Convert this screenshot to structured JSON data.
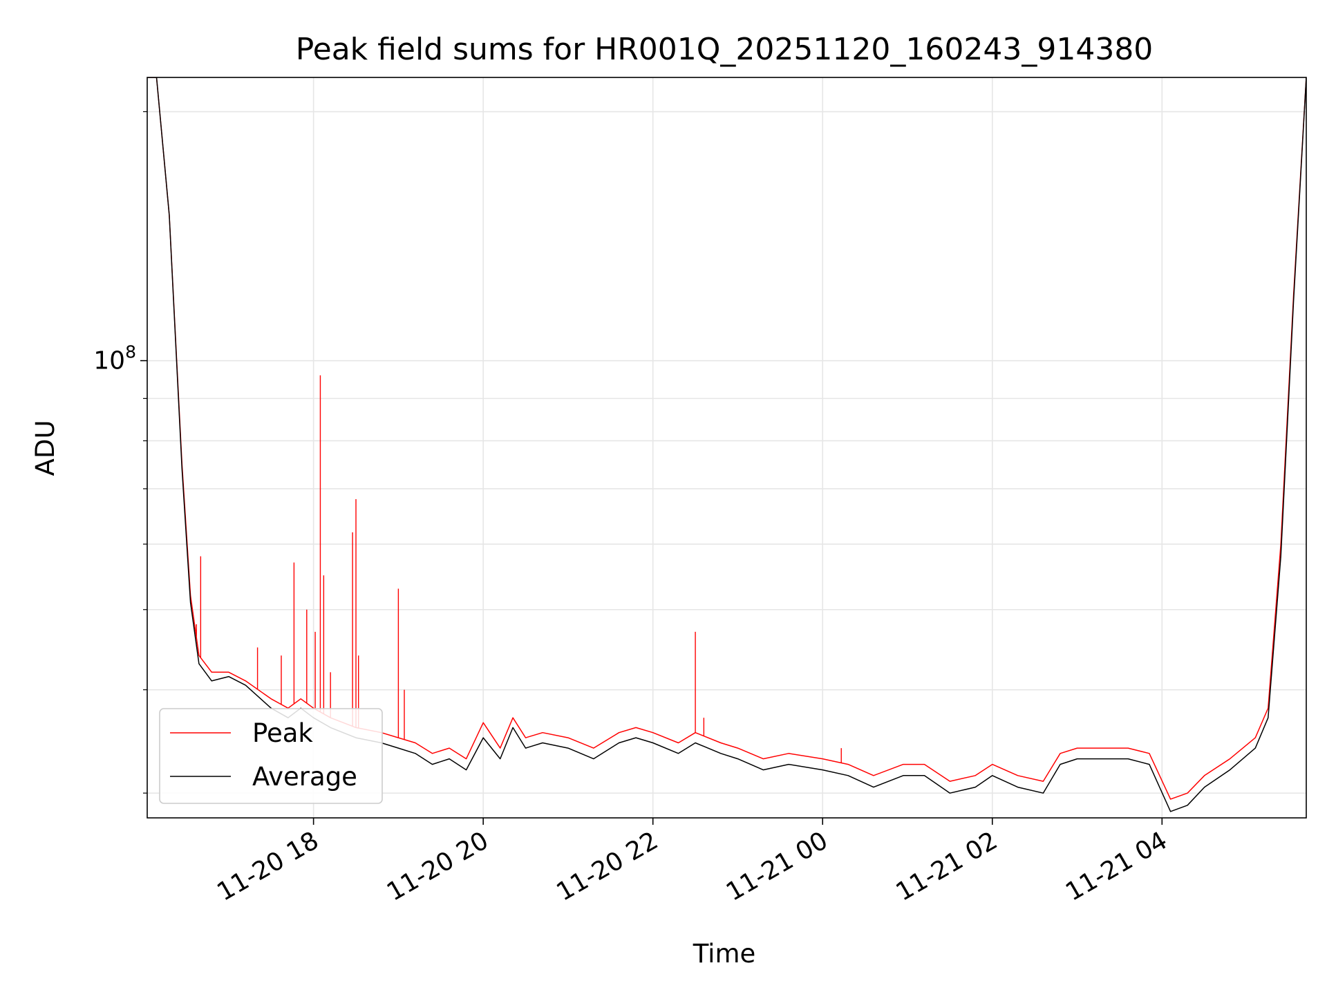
{
  "chart_data": {
    "type": "line",
    "title": "Peak field sums for HR001Q_20251120_160243_914380",
    "xlabel": "Time",
    "ylabel": "ADU",
    "yscale": "log",
    "grid": true,
    "legend_position": "lower-left",
    "x_unit": "hours since 11-20 16:00",
    "xlim": [
      0.04,
      13.7
    ],
    "ylim": [
      28000000,
      220000000
    ],
    "x_ticks": [
      {
        "value": 2,
        "label": "11-20 18"
      },
      {
        "value": 4,
        "label": "11-20 20"
      },
      {
        "value": 6,
        "label": "11-20 22"
      },
      {
        "value": 8,
        "label": "11-21 00"
      },
      {
        "value": 10,
        "label": "11-21 02"
      },
      {
        "value": 12,
        "label": "11-21 04"
      }
    ],
    "y_major_ticks": [
      {
        "value": 100000000,
        "base": "10",
        "exponent": "8"
      }
    ],
    "y_minor_ticks": [
      30000000,
      40000000,
      50000000,
      60000000,
      70000000,
      80000000,
      90000000,
      200000000
    ],
    "series": [
      {
        "name": "Peak",
        "color": "#ff0000",
        "x": [
          0.04,
          0.15,
          0.3,
          0.45,
          0.55,
          0.65,
          0.8,
          1.0,
          1.2,
          1.5,
          1.7,
          1.85,
          2.0,
          2.2,
          2.5,
          2.8,
          3.0,
          3.2,
          3.4,
          3.6,
          3.8,
          4.0,
          4.2,
          4.35,
          4.5,
          4.7,
          5.0,
          5.3,
          5.6,
          5.8,
          6.0,
          6.3,
          6.5,
          6.8,
          7.0,
          7.3,
          7.6,
          8.0,
          8.3,
          8.6,
          8.95,
          9.2,
          9.5,
          9.8,
          10.0,
          10.3,
          10.6,
          10.8,
          11.0,
          11.3,
          11.6,
          11.85,
          12.1,
          12.3,
          12.5,
          12.8,
          13.1,
          13.25,
          13.4,
          13.55,
          13.7
        ],
        "values": [
          220000000,
          220000000,
          150000000,
          75000000,
          52000000,
          44000000,
          42000000,
          42000000,
          41000000,
          39000000,
          38000000,
          39000000,
          38000000,
          37000000,
          36000000,
          35500000,
          35000000,
          34500000,
          33500000,
          34000000,
          33000000,
          36500000,
          34000000,
          37000000,
          35000000,
          35500000,
          35000000,
          34000000,
          35500000,
          36000000,
          35500000,
          34500000,
          35500000,
          34500000,
          34000000,
          33000000,
          33500000,
          33000000,
          32500000,
          31500000,
          32500000,
          32500000,
          31000000,
          31500000,
          32500000,
          31500000,
          31000000,
          33500000,
          34000000,
          34000000,
          34000000,
          33500000,
          29500000,
          30000000,
          31500000,
          33000000,
          35000000,
          38000000,
          60000000,
          120000000,
          220000000
        ]
      },
      {
        "name": "Average",
        "color": "#000000",
        "x": [
          0.04,
          0.15,
          0.3,
          0.45,
          0.55,
          0.65,
          0.8,
          1.0,
          1.2,
          1.5,
          1.7,
          1.85,
          2.0,
          2.2,
          2.5,
          2.8,
          3.0,
          3.2,
          3.4,
          3.6,
          3.8,
          4.0,
          4.2,
          4.35,
          4.5,
          4.7,
          5.0,
          5.3,
          5.6,
          5.8,
          6.0,
          6.3,
          6.5,
          6.8,
          7.0,
          7.3,
          7.6,
          8.0,
          8.3,
          8.6,
          8.95,
          9.2,
          9.5,
          9.8,
          10.0,
          10.3,
          10.6,
          10.8,
          11.0,
          11.3,
          11.6,
          11.85,
          12.1,
          12.3,
          12.5,
          12.8,
          13.1,
          13.25,
          13.4,
          13.55,
          13.7
        ],
        "values": [
          220000000,
          220000000,
          150000000,
          74000000,
          51000000,
          43000000,
          41000000,
          41500000,
          40500000,
          38000000,
          37000000,
          38000000,
          37000000,
          36000000,
          35000000,
          34500000,
          34000000,
          33500000,
          32500000,
          33000000,
          32000000,
          35000000,
          33000000,
          36000000,
          34000000,
          34500000,
          34000000,
          33000000,
          34500000,
          35000000,
          34500000,
          33500000,
          34500000,
          33500000,
          33000000,
          32000000,
          32500000,
          32000000,
          31500000,
          30500000,
          31500000,
          31500000,
          30000000,
          30500000,
          31500000,
          30500000,
          30000000,
          32500000,
          33000000,
          33000000,
          33000000,
          32500000,
          28500000,
          29000000,
          30500000,
          32000000,
          34000000,
          37000000,
          58000000,
          118000000,
          220000000
        ]
      }
    ],
    "spikes": {
      "color": "#ff0000",
      "x": [
        0.62,
        0.67,
        1.34,
        1.62,
        1.77,
        1.92,
        2.02,
        2.08,
        2.12,
        2.2,
        2.46,
        2.5,
        2.53,
        3.0,
        3.07,
        6.5,
        6.6,
        8.22
      ],
      "values": [
        48000000,
        58000000,
        45000000,
        44000000,
        57000000,
        50000000,
        47000000,
        96000000,
        55000000,
        42000000,
        62000000,
        68000000,
        44000000,
        53000000,
        40000000,
        47000000,
        37000000,
        34000000
      ]
    }
  }
}
